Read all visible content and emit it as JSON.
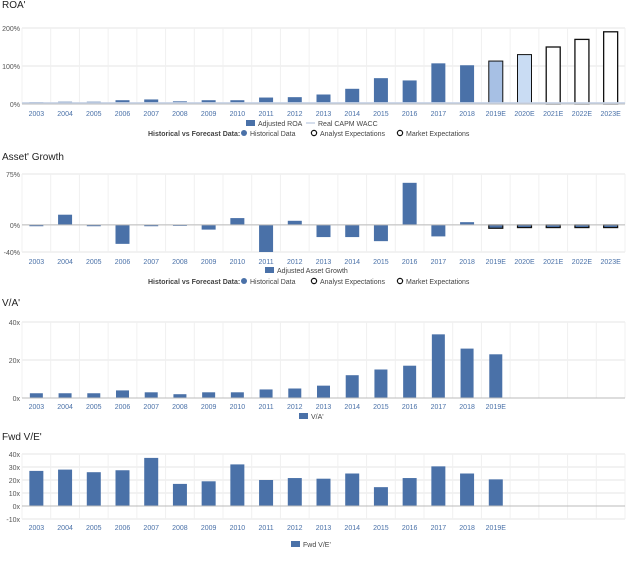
{
  "chart_data": [
    {
      "type": "bar",
      "title": "ROA'",
      "categories": [
        "2003",
        "2004",
        "2005",
        "2006",
        "2007",
        "2008",
        "2009",
        "2010",
        "2011",
        "2012",
        "2013",
        "2014",
        "2015",
        "2016",
        "2017",
        "2018",
        "2019E",
        "2020E",
        "2021E",
        "2022E",
        "2023E"
      ],
      "ylim": [
        0,
        200
      ],
      "y_ticks": [
        "0%",
        "100%",
        "200%"
      ],
      "y_tick_values": [
        0,
        100,
        200
      ],
      "series": [
        {
          "name": "Adjusted ROA",
          "values": [
            5,
            6,
            6,
            10,
            12,
            7,
            10,
            10,
            17,
            18,
            25,
            40,
            68,
            62,
            107,
            102,
            113,
            130,
            150,
            170,
            190
          ]
        }
      ],
      "series_kinds": [
        "hist",
        "hist",
        "hist",
        "hist",
        "hist",
        "hist",
        "hist",
        "hist",
        "hist",
        "hist",
        "hist",
        "hist",
        "hist",
        "hist",
        "hist",
        "hist",
        "analyst",
        "analyst",
        "market",
        "market",
        "market"
      ],
      "reference_line": {
        "name": "Real CAPM WACC",
        "value": 3
      },
      "legend": {
        "series_labels": [
          "Adjusted ROA",
          "Real CAPM WACC"
        ],
        "forecast_caption": "Historical vs Forecast Data:",
        "forecast_items": [
          "Historical Data",
          "Analyst Expectations",
          "Market Expectations"
        ]
      },
      "grid": true
    },
    {
      "type": "bar",
      "title": "Asset' Growth",
      "categories": [
        "2003",
        "2004",
        "2005",
        "2006",
        "2007",
        "2008",
        "2009",
        "2010",
        "2011",
        "2012",
        "2013",
        "2014",
        "2015",
        "2016",
        "2017",
        "2018",
        "2019E",
        "2020E",
        "2021E",
        "2022E",
        "2023E"
      ],
      "ylim": [
        -40,
        75
      ],
      "y_ticks": [
        "-40%",
        "0%",
        "75%"
      ],
      "y_tick_values": [
        -40,
        0,
        75
      ],
      "series": [
        {
          "name": "Adjusted Asset Growth",
          "values": [
            -2,
            15,
            -2,
            -28,
            -2,
            0,
            -7,
            10,
            -40,
            6,
            -18,
            -18,
            -24,
            62,
            -17,
            4,
            -5,
            -4,
            -4,
            -4,
            -4
          ]
        }
      ],
      "series_kinds": [
        "hist",
        "hist",
        "hist",
        "hist",
        "hist",
        "hist",
        "hist",
        "hist",
        "hist",
        "hist",
        "hist",
        "hist",
        "hist",
        "hist",
        "hist",
        "hist",
        "forecast",
        "forecast",
        "forecast",
        "forecast",
        "forecast"
      ],
      "legend": {
        "series_labels": [
          "Adjusted Asset Growth"
        ],
        "forecast_caption": "Historical vs Forecast Data:",
        "forecast_items": [
          "Historical Data",
          "Analyst Expectations",
          "Market Expectations"
        ]
      },
      "grid": true
    },
    {
      "type": "bar",
      "title": "V/A'",
      "categories": [
        "2003",
        "2004",
        "2005",
        "2006",
        "2007",
        "2008",
        "2009",
        "2010",
        "2011",
        "2012",
        "2013",
        "2014",
        "2015",
        "2016",
        "2017",
        "2018",
        "2019E"
      ],
      "ylim": [
        0,
        40
      ],
      "y_ticks": [
        "0x",
        "20x",
        "40x"
      ],
      "y_tick_values": [
        0,
        20,
        40
      ],
      "series": [
        {
          "name": "V/A'",
          "values": [
            2.5,
            2.5,
            2.5,
            4,
            3,
            2,
            3,
            3,
            4.5,
            5,
            6.5,
            12,
            15,
            17,
            33.5,
            26,
            23
          ]
        }
      ],
      "legend": {
        "series_labels": [
          "V/A'"
        ]
      },
      "grid": true
    },
    {
      "type": "bar",
      "title": "Fwd V/E'",
      "categories": [
        "2003",
        "2004",
        "2005",
        "2006",
        "2007",
        "2008",
        "2009",
        "2010",
        "2011",
        "2012",
        "2013",
        "2014",
        "2015",
        "2016",
        "2017",
        "2018",
        "2019E"
      ],
      "ylim": [
        -10,
        40
      ],
      "y_ticks": [
        "-10x",
        "0x",
        "10x",
        "20x",
        "30x",
        "40x"
      ],
      "y_tick_values": [
        -10,
        0,
        10,
        20,
        30,
        40
      ],
      "series": [
        {
          "name": "Fwd V/E'",
          "values": [
            27,
            28,
            26,
            27.5,
            37,
            17,
            19,
            32,
            20,
            21.5,
            21,
            25,
            14.5,
            21.5,
            30.5,
            25,
            20.5
          ]
        }
      ],
      "legend": {
        "series_labels": [
          "Fwd V/E'"
        ]
      },
      "grid": true
    }
  ],
  "colors": {
    "bar": "#4a71a8",
    "analyst_fill": "#a7c0e4",
    "analyst_fill_light": "#c9dcf3",
    "market_outline": "#111111",
    "wacc_line": "#c7d3e6",
    "grid": "#e5e5e5",
    "axis_text": "#4a71a8"
  }
}
